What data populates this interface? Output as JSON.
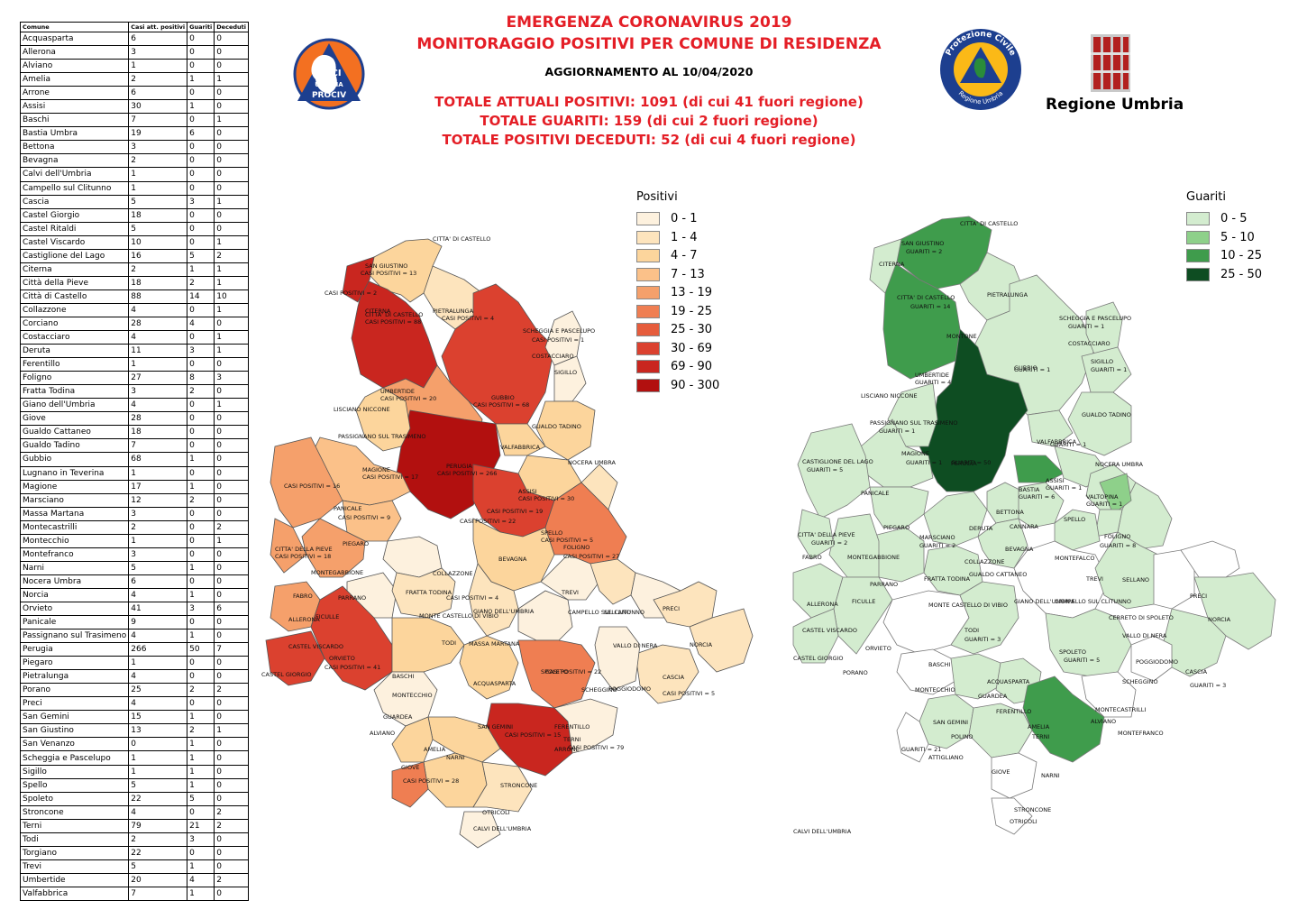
{
  "header": {
    "title1": "EMERGENZA CORONAVIRUS 2019",
    "title2": "MONITORAGGIO POSITIVI PER COMUNE DI RESIDENZA",
    "update": "AGGIORNAMENTO AL 10/04/2020",
    "total_positive": "TOTALE ATTUALI POSITIVI: 1091 (di cui 41 fuori regione)",
    "total_recovered": "TOTALE GUARITI: 159 (di cui 2 fuori regione)",
    "total_deceased": "TOTALE POSITIVI DECEDUTI: 52 (di cui 4 fuori regione)"
  },
  "logos": {
    "anci_top": "ANCI",
    "anci_mid": "UMBRIA",
    "anci_bottom": "PROCIV",
    "protezione_top": "Protezione Civile",
    "protezione_bottom": "Regione Umbria",
    "regione": "Regione Umbria"
  },
  "table": {
    "headers": [
      "Comune",
      "Casi att. positivi",
      "Guariti",
      "Deceduti"
    ],
    "rows": [
      [
        "Acquasparta",
        "6",
        "0",
        "0"
      ],
      [
        "Allerona",
        "3",
        "0",
        "0"
      ],
      [
        "Alviano",
        "1",
        "0",
        "0"
      ],
      [
        "Amelia",
        "2",
        "1",
        "1"
      ],
      [
        "Arrone",
        "6",
        "0",
        "0"
      ],
      [
        "Assisi",
        "30",
        "1",
        "0"
      ],
      [
        "Baschi",
        "7",
        "0",
        "1"
      ],
      [
        "Bastia Umbra",
        "19",
        "6",
        "0"
      ],
      [
        "Bettona",
        "3",
        "0",
        "0"
      ],
      [
        "Bevagna",
        "2",
        "0",
        "0"
      ],
      [
        "Calvi dell'Umbria",
        "1",
        "0",
        "0"
      ],
      [
        "Campello sul Clitunno",
        "1",
        "0",
        "0"
      ],
      [
        "Cascia",
        "5",
        "3",
        "1"
      ],
      [
        "Castel Giorgio",
        "18",
        "0",
        "0"
      ],
      [
        "Castel Ritaldi",
        "5",
        "0",
        "0"
      ],
      [
        "Castel Viscardo",
        "10",
        "0",
        "1"
      ],
      [
        "Castiglione del Lago",
        "16",
        "5",
        "2"
      ],
      [
        "Citerna",
        "2",
        "1",
        "1"
      ],
      [
        "Città  della Pieve",
        "18",
        "2",
        "1"
      ],
      [
        "Città  di Castello",
        "88",
        "14",
        "10"
      ],
      [
        "Collazzone",
        "4",
        "0",
        "1"
      ],
      [
        "Corciano",
        "28",
        "4",
        "0"
      ],
      [
        "Costacciaro",
        "4",
        "0",
        "1"
      ],
      [
        "Deruta",
        "11",
        "3",
        "1"
      ],
      [
        "Ferentillo",
        "1",
        "0",
        "0"
      ],
      [
        "Foligno",
        "27",
        "8",
        "3"
      ],
      [
        "Fratta Todina",
        "3",
        "2",
        "0"
      ],
      [
        "Giano dell'Umbria",
        "4",
        "0",
        "1"
      ],
      [
        "Giove",
        "28",
        "0",
        "0"
      ],
      [
        "Gualdo Cattaneo",
        "18",
        "0",
        "0"
      ],
      [
        "Gualdo Tadino",
        "7",
        "0",
        "0"
      ],
      [
        "Gubbio",
        "68",
        "1",
        "0"
      ],
      [
        "Lugnano in Teverina",
        "1",
        "0",
        "0"
      ],
      [
        "Magione",
        "17",
        "1",
        "0"
      ],
      [
        "Marsciano",
        "12",
        "2",
        "0"
      ],
      [
        "Massa Martana",
        "3",
        "0",
        "0"
      ],
      [
        "Montecastrilli",
        "2",
        "0",
        "2"
      ],
      [
        "Montecchio",
        "1",
        "0",
        "1"
      ],
      [
        "Montefranco",
        "3",
        "0",
        "0"
      ],
      [
        "Narni",
        "5",
        "1",
        "0"
      ],
      [
        "Nocera Umbra",
        "6",
        "0",
        "0"
      ],
      [
        "Norcia",
        "4",
        "1",
        "0"
      ],
      [
        "Orvieto",
        "41",
        "3",
        "6"
      ],
      [
        "Panicale",
        "9",
        "0",
        "0"
      ],
      [
        "Passignano sul Trasimeno",
        "4",
        "1",
        "0"
      ],
      [
        "Perugia",
        "266",
        "50",
        "7"
      ],
      [
        "Piegaro",
        "1",
        "0",
        "0"
      ],
      [
        "Pietralunga",
        "4",
        "0",
        "0"
      ],
      [
        "Porano",
        "25",
        "2",
        "2"
      ],
      [
        "Preci",
        "4",
        "0",
        "0"
      ],
      [
        "San Gemini",
        "15",
        "1",
        "0"
      ],
      [
        "San Giustino",
        "13",
        "2",
        "1"
      ],
      [
        "San Venanzo",
        "0",
        "1",
        "0"
      ],
      [
        "Scheggia e Pascelupo",
        "1",
        "1",
        "0"
      ],
      [
        "Sigillo",
        "1",
        "1",
        "0"
      ],
      [
        "Spello",
        "5",
        "1",
        "0"
      ],
      [
        "Spoleto",
        "22",
        "5",
        "0"
      ],
      [
        "Stroncone",
        "4",
        "0",
        "2"
      ],
      [
        "Terni",
        "79",
        "21",
        "2"
      ],
      [
        "Todi",
        "2",
        "3",
        "0"
      ],
      [
        "Torgiano",
        "22",
        "0",
        "0"
      ],
      [
        "Trevi",
        "5",
        "1",
        "0"
      ],
      [
        "Umbertide",
        "20",
        "4",
        "2"
      ],
      [
        "Valfabbrica",
        "7",
        "1",
        "0"
      ]
    ]
  },
  "legend_positivi": {
    "title": "Positivi",
    "classes": [
      {
        "label": "0 - 1",
        "color": "#fdf1de"
      },
      {
        "label": "1 - 4",
        "color": "#fde4bd"
      },
      {
        "label": "4 - 7",
        "color": "#fcd59c"
      },
      {
        "label": "7 - 13",
        "color": "#fbc189"
      },
      {
        "label": "13 - 19",
        "color": "#f5a06b"
      },
      {
        "label": "19 - 25",
        "color": "#ef7e52"
      },
      {
        "label": "25 - 30",
        "color": "#e65c3c"
      },
      {
        "label": "30 - 69",
        "color": "#db412f"
      },
      {
        "label": "69 - 90",
        "color": "#c9261f"
      },
      {
        "label": "90 - 300",
        "color": "#b2100f"
      }
    ]
  },
  "legend_guariti": {
    "title": "Guariti",
    "classes": [
      {
        "label": "0 - 5",
        "color": "#d3eccf"
      },
      {
        "label": "5 - 10",
        "color": "#8ed08a"
      },
      {
        "label": "10 - 25",
        "color": "#3f9c4c"
      },
      {
        "label": "25 - 50",
        "color": "#0e4d22"
      }
    ]
  },
  "map_positivi": {
    "labels": [
      "CITTA' DI CASTELLO",
      "SAN GIUSTINO",
      "CASI POSITIVI = 13",
      "CASI POSITIVI = 2",
      "CITERNA",
      "CITTA' DI CASTELLO",
      "CASI POSITIVI = 88",
      "PIETRALUNGA",
      "CASI POSITIVI = 4",
      "SCHEGGIA E PASCELUPO",
      "CASI POSITIVI = 1",
      "COSTACCIARO",
      "SIGILLO",
      "GUBBIO",
      "CASI POSITIVI = 68",
      "UMBERTIDE",
      "CASI POSITIVI = 20",
      "LISCIANO NICCONE",
      "GUALDO TADINO",
      "PASSIGNANO SUL TRASIMENO",
      "VALFABBRICA",
      "PERUGIA",
      "CASI POSITIVI = 266",
      "MAGIONE",
      "CASI POSITIVI = 17",
      "CASI POSITIVI = 16",
      "NOCERA UMBRA",
      "ASSISI",
      "CASI POSITIVI = 30",
      "CASI POSITIVI = 19",
      "CASI POSITIVI = 22",
      "PANICALE",
      "CASI POSITIVI = 9",
      "SPELLO",
      "CASI POSITIVI = 5",
      "FOLIGNO",
      "CASI POSITIVI = 27",
      "PIEGARO",
      "CITTA' DELLA PIEVE",
      "CASI POSITIVI = 18",
      "BEVAGNA",
      "COLLAZZONE",
      "MONTEGABBIONE",
      "FRATTA TODINA",
      "TREVI",
      "SELLANO",
      "PRECI",
      "FABRO",
      "PARRANO",
      "FICULLE",
      "MONTE CASTELLO DI VIBIO",
      "GIANO DELL'UMBRIA",
      "CAMPELLO SUL CLITUNNO",
      "CASI POSITIVI = 4",
      "ALLERONA",
      "TODI",
      "MASSA MARTANA",
      "VALLO DI NERA",
      "NORCIA",
      "CASTEL VISCARDO",
      "ORVIETO",
      "CASI POSITIVI = 41",
      "SPOLETO",
      "CASI POSITIVI = 22",
      "CASTEL GIORGIO",
      "BASCHI",
      "POGGIODOMO",
      "CASCIA",
      "CASI POSITIVI = 5",
      "ACQUASPARTA",
      "MONTECCHIO",
      "SCHEGGINO",
      "GUARDEA",
      "SAN GEMINI",
      "CASI POSITIVI = 15",
      "FERENTILLO",
      "ALVIANO",
      "TERNI",
      "CASI POSITIVI = 79",
      "AMELIA",
      "ARRONE",
      "NARNI",
      "GIOVE",
      "CASI POSITIVI = 28",
      "STRONCONE",
      "OTRICOLI",
      "CALVI DELL'UMBRIA"
    ]
  },
  "map_guariti": {
    "labels": [
      "CITTA' DI CASTELLO",
      "SAN GIUSTINO",
      "GUARITI = 2",
      "CITERNA",
      "CITTA' DI CASTELLO",
      "GUARITI = 14",
      "PIETRALUNGA",
      "MONTONE",
      "SCHEGGIA E PASCELUPO",
      "GUARITI = 1",
      "COSTACCIARO",
      "GUBBIO",
      "GUARITI = 1",
      "SIGILLO",
      "GUARITI = 1",
      "UMBERTIDE",
      "GUARITI = 4",
      "LISCIANO NICCONE",
      "GUALDO TADINO",
      "PASSIGNANO SUL TRASIMENO",
      "GUARITI = 1",
      "VALFABBRICA",
      "GUARITI = 1",
      "CASTIGLIONE DEL LAGO",
      "GUARITI = 5",
      "MAGIONE",
      "GUARITI = 1",
      "PERUGIA",
      "GUARITI = 50",
      "NOCERA UMBRA",
      "ASSISI",
      "GUARITI = 1",
      "BASTIA",
      "GUARITI = 6",
      "PANICALE",
      "VALTOPINA",
      "GUARITI = 1",
      "BETTONA",
      "CANNARA",
      "SPELLO",
      "FOLIGNO",
      "GUARITI = 8",
      "CITTA' DELLA PIEVE",
      "GUARITI = 2",
      "PIEGARO",
      "MARSCIANO",
      "GUARITI = 2",
      "DERUTA",
      "BEVAGNA",
      "MONTEFALCO",
      "FABRO",
      "MONTEGABBIONE",
      "FRATTA TODINA",
      "COLLAZZONE",
      "GUALDO CATTANEO",
      "TREVI",
      "SELLANO",
      "PRECI",
      "ALLERONA",
      "FICULLE",
      "PARRANO",
      "MONTE CASTELLO DI VIBIO",
      "GIANO DELL'UMBRIA",
      "CAMPELLO SUL CLITUNNO",
      "CERRETO DI SPOLETO",
      "NORCIA",
      "CASTEL VISCARDO",
      "TODI",
      "GUARITI = 3",
      "VALLO DI NERA",
      "CASTEL GIORGIO",
      "ORVIETO",
      "SPOLETO",
      "GUARITI = 5",
      "POGGIODOMO",
      "CASCIA",
      "GUARITI = 3",
      "BASCHI",
      "PORANO",
      "SCHEGGINO",
      "ACQUASPARTA",
      "MONTECCHIO",
      "GUARDEA",
      "MONTECASTRILLI",
      "FERENTILLO",
      "SAN GEMINI",
      "ALVIANO",
      "MONTEFRANCO",
      "POLINO",
      "AMELIA",
      "TERNI",
      "GUARITI = 21",
      "ATTIGLIANO",
      "GIOVE",
      "NARNI",
      "STRONCONE",
      "OTRICOLI",
      "CALVI DELL'UMBRIA"
    ]
  }
}
